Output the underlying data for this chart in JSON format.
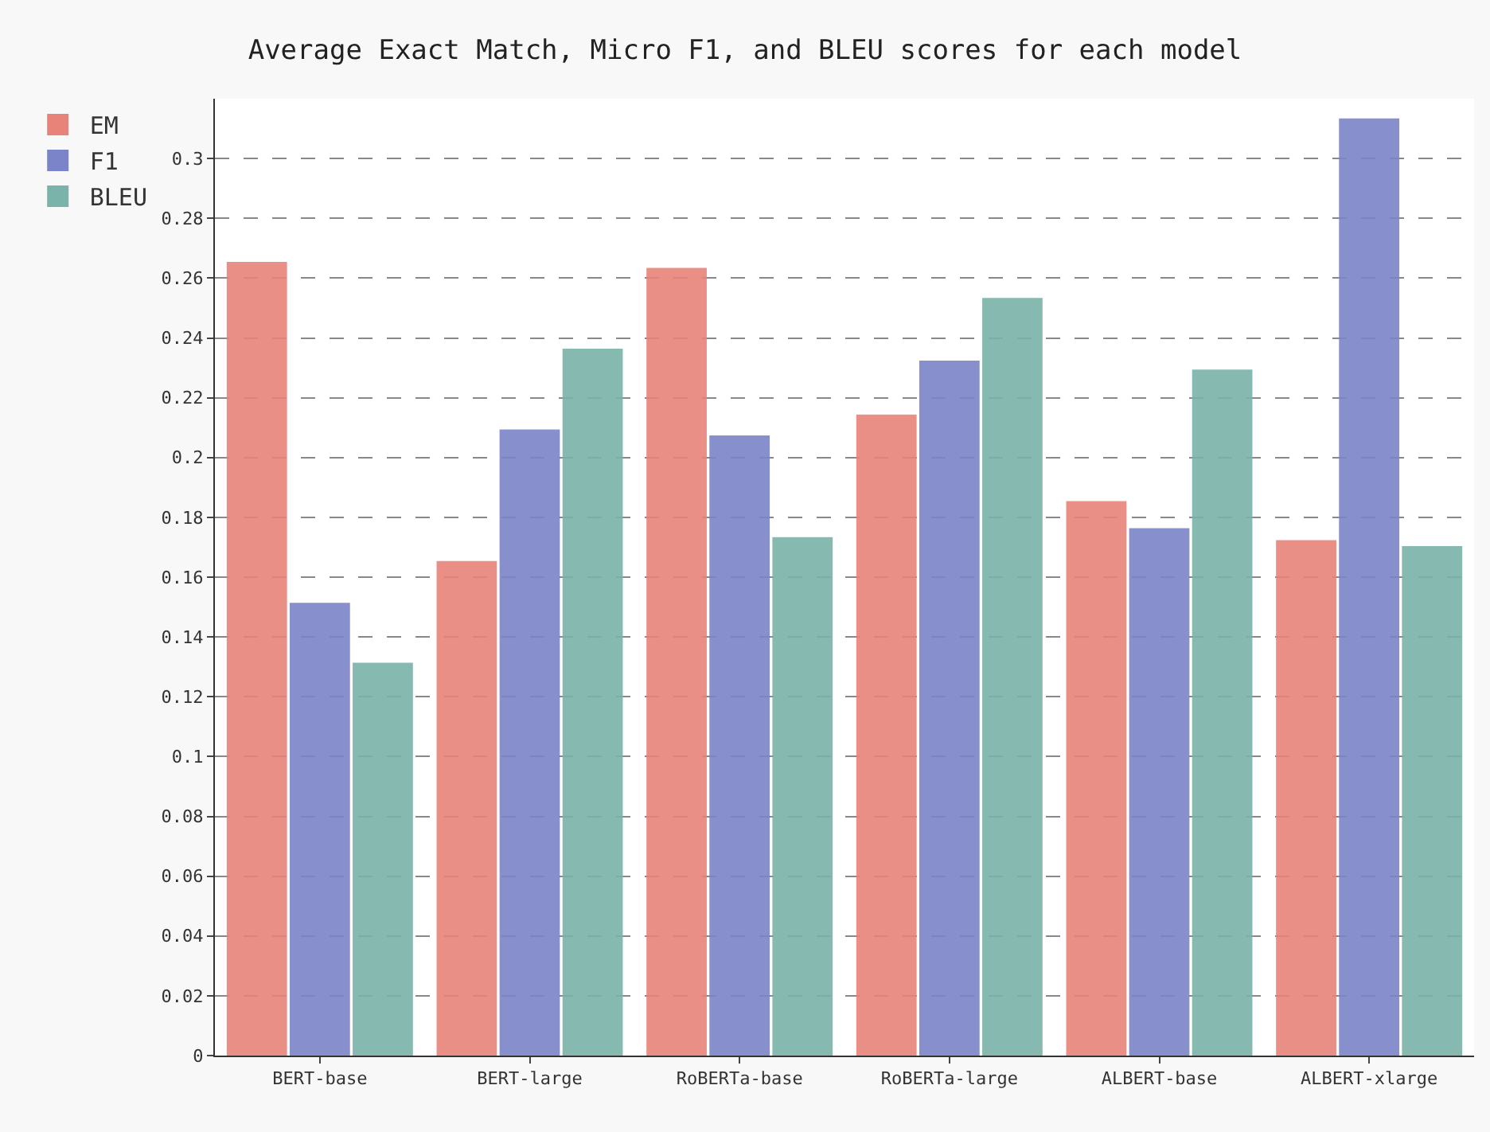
{
  "chart_data": {
    "type": "bar",
    "title": "Average Exact Match, Micro F1, and BLEU scores for each model",
    "categories": [
      "BERT-base",
      "BERT-large",
      "RoBERTa-base",
      "RoBERTa-large",
      "ALBERT-base",
      "ALBERT-xlarge"
    ],
    "series": [
      {
        "name": "EM",
        "color": "#e8837a",
        "values": [
          0.265,
          0.165,
          0.263,
          0.214,
          0.185,
          0.172
        ]
      },
      {
        "name": "F1",
        "color": "#7b84c8",
        "values": [
          0.151,
          0.209,
          0.207,
          0.232,
          0.176,
          0.313
        ]
      },
      {
        "name": "BLEU",
        "color": "#7ab3a9",
        "values": [
          0.131,
          0.236,
          0.173,
          0.253,
          0.229,
          0.17
        ]
      }
    ],
    "ylim": [
      0,
      0.32
    ],
    "yticks": [
      0,
      0.02,
      0.04,
      0.06,
      0.08,
      0.1,
      0.12,
      0.14,
      0.16,
      0.18,
      0.2,
      0.22,
      0.24,
      0.26,
      0.28,
      0.3
    ],
    "grid": "y",
    "legend": "top left"
  }
}
